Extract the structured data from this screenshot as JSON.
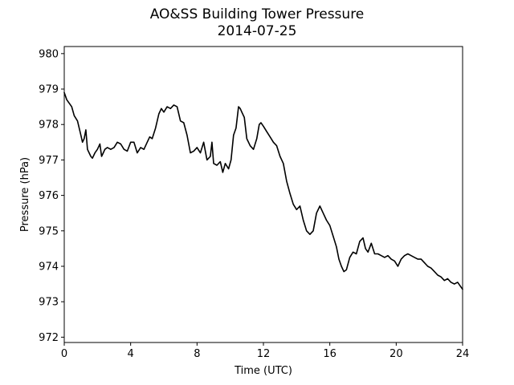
{
  "chart_data": {
    "type": "line",
    "title": "AO&SS Building Tower Pressure",
    "subtitle": "2014-07-25",
    "xlabel": "Time (UTC)",
    "ylabel": "Pressure (hPa)",
    "xlim": [
      0,
      24
    ],
    "ylim": [
      971.85,
      980.2
    ],
    "xticks": [
      0,
      4,
      8,
      12,
      16,
      20,
      24
    ],
    "yticks": [
      972,
      973,
      974,
      975,
      976,
      977,
      978,
      979,
      980
    ],
    "grid": false,
    "line_color": "#000000",
    "series": [
      {
        "x": [
          0,
          0.15,
          0.3,
          0.45,
          0.6,
          0.8,
          1.0,
          1.1,
          1.2,
          1.3,
          1.4,
          1.5,
          1.6,
          1.7,
          1.85,
          2.0,
          2.15,
          2.25,
          2.35,
          2.45,
          2.6,
          2.8,
          3.0,
          3.2,
          3.4,
          3.6,
          3.8,
          4.0,
          4.2,
          4.4,
          4.6,
          4.8,
          5.0,
          5.15,
          5.3,
          5.5,
          5.7,
          5.85,
          6.0,
          6.2,
          6.4,
          6.6,
          6.8,
          7.0,
          7.2,
          7.4,
          7.6,
          7.8,
          8.0,
          8.2,
          8.4,
          8.6,
          8.8,
          8.9,
          9.0,
          9.2,
          9.4,
          9.55,
          9.7,
          9.9,
          10.05,
          10.2,
          10.35,
          10.5,
          10.6,
          10.7,
          10.85,
          11.0,
          11.2,
          11.4,
          11.6,
          11.75,
          11.85,
          12.0,
          12.2,
          12.4,
          12.6,
          12.8,
          13.0,
          13.2,
          13.4,
          13.6,
          13.8,
          14.0,
          14.2,
          14.4,
          14.6,
          14.8,
          15.0,
          15.2,
          15.4,
          15.6,
          15.8,
          16.0,
          16.2,
          16.4,
          16.55,
          16.7,
          16.85,
          17.0,
          17.2,
          17.4,
          17.6,
          17.8,
          18.0,
          18.15,
          18.3,
          18.5,
          18.7,
          18.9,
          19.1,
          19.3,
          19.5,
          19.7,
          19.9,
          20.1,
          20.3,
          20.5,
          20.7,
          20.9,
          21.1,
          21.3,
          21.5,
          21.7,
          21.9,
          22.1,
          22.3,
          22.5,
          22.7,
          22.9,
          23.1,
          23.3,
          23.5,
          23.7,
          23.85,
          24.0
        ],
        "y": [
          978.9,
          978.7,
          978.6,
          978.5,
          978.25,
          978.1,
          977.7,
          977.5,
          977.6,
          977.85,
          977.3,
          977.2,
          977.1,
          977.05,
          977.2,
          977.3,
          977.45,
          977.1,
          977.2,
          977.3,
          977.35,
          977.3,
          977.35,
          977.5,
          977.45,
          977.3,
          977.25,
          977.5,
          977.5,
          977.2,
          977.35,
          977.3,
          977.5,
          977.65,
          977.6,
          977.9,
          978.3,
          978.45,
          978.35,
          978.5,
          978.45,
          978.55,
          978.5,
          978.1,
          978.05,
          977.7,
          977.2,
          977.25,
          977.35,
          977.2,
          977.5,
          977.0,
          977.1,
          977.5,
          976.9,
          976.85,
          976.95,
          976.65,
          976.9,
          976.75,
          977.0,
          977.7,
          977.9,
          978.5,
          978.45,
          978.35,
          978.2,
          977.6,
          977.4,
          977.3,
          977.6,
          978.0,
          978.05,
          977.95,
          977.8,
          977.65,
          977.5,
          977.4,
          977.1,
          976.9,
          976.4,
          976.05,
          975.75,
          975.6,
          975.7,
          975.3,
          975.0,
          974.9,
          975.0,
          975.5,
          975.7,
          975.5,
          975.3,
          975.15,
          974.85,
          974.55,
          974.2,
          974.0,
          973.85,
          973.9,
          974.25,
          974.4,
          974.35,
          974.7,
          974.8,
          974.5,
          974.4,
          974.65,
          974.35,
          974.35,
          974.3,
          974.25,
          974.3,
          974.2,
          974.15,
          974.0,
          974.2,
          974.3,
          974.35,
          974.3,
          974.25,
          974.2,
          974.2,
          974.1,
          974.0,
          973.95,
          973.85,
          973.75,
          973.7,
          973.6,
          973.65,
          973.55,
          973.5,
          973.55,
          973.45,
          973.35
        ]
      }
    ]
  }
}
